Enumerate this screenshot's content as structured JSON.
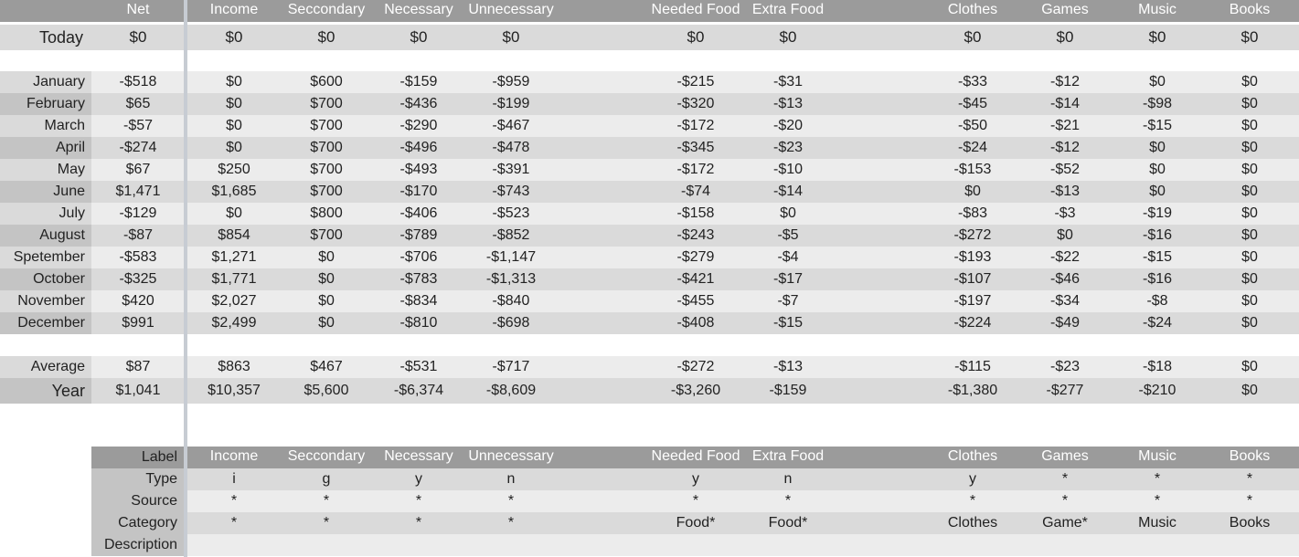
{
  "header": {
    "columns": [
      "Net",
      "Income",
      "Seccondary",
      "Necessary",
      "Unnecessary",
      "Needed Food",
      "Extra Food",
      "Clothes",
      "Games",
      "Music",
      "Books"
    ]
  },
  "today": {
    "label": "Today",
    "values": [
      "$0",
      "$0",
      "$0",
      "$0",
      "$0",
      "$0",
      "$0",
      "$0",
      "$0",
      "$0",
      "$0"
    ]
  },
  "months": [
    {
      "label": "January",
      "values": [
        "-$518",
        "$0",
        "$600",
        "-$159",
        "-$959",
        "-$215",
        "-$31",
        "-$33",
        "-$12",
        "$0",
        "$0"
      ]
    },
    {
      "label": "February",
      "values": [
        "$65",
        "$0",
        "$700",
        "-$436",
        "-$199",
        "-$320",
        "-$13",
        "-$45",
        "-$14",
        "-$98",
        "$0"
      ]
    },
    {
      "label": "March",
      "values": [
        "-$57",
        "$0",
        "$700",
        "-$290",
        "-$467",
        "-$172",
        "-$20",
        "-$50",
        "-$21",
        "-$15",
        "$0"
      ]
    },
    {
      "label": "April",
      "values": [
        "-$274",
        "$0",
        "$700",
        "-$496",
        "-$478",
        "-$345",
        "-$23",
        "-$24",
        "-$12",
        "$0",
        "$0"
      ]
    },
    {
      "label": "May",
      "values": [
        "$67",
        "$250",
        "$700",
        "-$493",
        "-$391",
        "-$172",
        "-$10",
        "-$153",
        "-$52",
        "$0",
        "$0"
      ]
    },
    {
      "label": "June",
      "values": [
        "$1,471",
        "$1,685",
        "$700",
        "-$170",
        "-$743",
        "-$74",
        "-$14",
        "$0",
        "-$13",
        "$0",
        "$0"
      ]
    },
    {
      "label": "July",
      "values": [
        "-$129",
        "$0",
        "$800",
        "-$406",
        "-$523",
        "-$158",
        "$0",
        "-$83",
        "-$3",
        "-$19",
        "$0"
      ]
    },
    {
      "label": "August",
      "values": [
        "-$87",
        "$854",
        "$700",
        "-$789",
        "-$852",
        "-$243",
        "-$5",
        "-$272",
        "$0",
        "-$16",
        "$0"
      ]
    },
    {
      "label": "Spetember",
      "values": [
        "-$583",
        "$1,271",
        "$0",
        "-$706",
        "-$1,147",
        "-$279",
        "-$4",
        "-$193",
        "-$22",
        "-$15",
        "$0"
      ]
    },
    {
      "label": "October",
      "values": [
        "-$325",
        "$1,771",
        "$0",
        "-$783",
        "-$1,313",
        "-$421",
        "-$17",
        "-$107",
        "-$46",
        "-$16",
        "$0"
      ]
    },
    {
      "label": "November",
      "values": [
        "$420",
        "$2,027",
        "$0",
        "-$834",
        "-$840",
        "-$455",
        "-$7",
        "-$197",
        "-$34",
        "-$8",
        "$0"
      ]
    },
    {
      "label": "December",
      "values": [
        "$991",
        "$2,499",
        "$0",
        "-$810",
        "-$698",
        "-$408",
        "-$15",
        "-$224",
        "-$49",
        "-$24",
        "$0"
      ]
    }
  ],
  "average": {
    "label": "Average",
    "values": [
      "$87",
      "$863",
      "$467",
      "-$531",
      "-$717",
      "-$272",
      "-$13",
      "-$115",
      "-$23",
      "-$18",
      "$0"
    ]
  },
  "year": {
    "label": "Year",
    "values": [
      "$1,041",
      "$10,357",
      "$5,600",
      "-$6,374",
      "-$8,609",
      "-$3,260",
      "-$159",
      "-$1,380",
      "-$277",
      "-$210",
      "$0"
    ]
  },
  "config": {
    "rows": [
      {
        "label": "Label",
        "values": [
          "Income",
          "Seccondary",
          "Necessary",
          "Unnecessary",
          "Needed Food",
          "Extra Food",
          "Clothes",
          "Games",
          "Music",
          "Books"
        ]
      },
      {
        "label": "Type",
        "values": [
          "i",
          "g",
          "y",
          "n",
          "y",
          "n",
          "y",
          "*",
          "*",
          "*"
        ]
      },
      {
        "label": "Source",
        "values": [
          "*",
          "*",
          "*",
          "*",
          "*",
          "*",
          "*",
          "*",
          "*",
          "*"
        ]
      },
      {
        "label": "Category",
        "values": [
          "*",
          "*",
          "*",
          "*",
          "Food*",
          "Food*",
          "Clothes",
          "Game*",
          "Music",
          "Books"
        ]
      },
      {
        "label": "Description",
        "values": [
          "",
          "",
          "",
          "",
          "",
          "",
          "",
          "",
          "",
          ""
        ]
      }
    ]
  },
  "colors": {
    "header": "#9b9b9b",
    "label": "#c4c4c4",
    "band_light": "#ececec",
    "band_dark": "#dadada",
    "divider": "#c7ccd3"
  }
}
